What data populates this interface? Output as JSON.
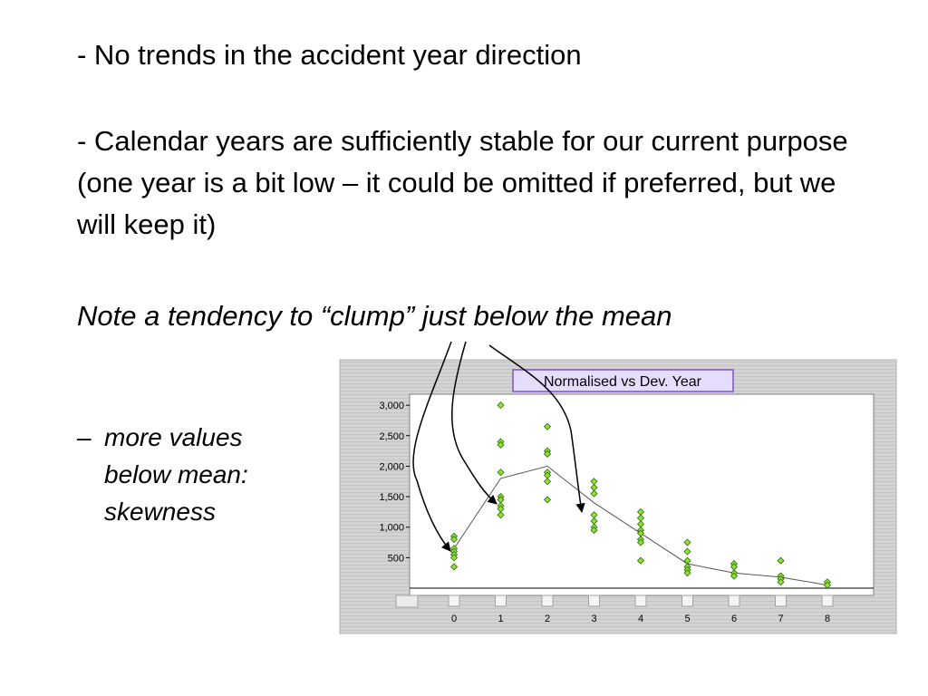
{
  "slide": {
    "point1": "- No trends in the accident year direction",
    "point2": "- Calendar years are sufficiently stable for our current purpose (one year is a bit low – it could be omitted if preferred, but we will keep it)",
    "note": "Note a tendency to “clump” just below the mean",
    "bullet_dash": "–",
    "bullet_lines": [
      "more values",
      "below mean:",
      "skewness"
    ]
  },
  "chart_data": {
    "type": "scatter",
    "title": "Normalised vs Dev. Year",
    "xlabel": "",
    "ylabel": "",
    "x_ticks": [
      "0",
      "1",
      "2",
      "3",
      "4",
      "5",
      "6",
      "7",
      "8"
    ],
    "y_ticks": [
      "500",
      "1,000",
      "1,500",
      "2,000",
      "2,500",
      "3,000"
    ],
    "ylim": [
      0,
      3000
    ],
    "grid": false,
    "legend": "none",
    "colors": {
      "panel_background": "#d3d3d3",
      "panel_stripe": "#c4c4c4",
      "plot_background": "#ffffff",
      "marker_fill": "#8fe13a",
      "marker_stroke": "#2f6b08",
      "mean_line": "#555555",
      "title_box_fill": "#e6dcfb",
      "title_box_stroke": "#7a55c8",
      "arrow": "#000000"
    },
    "series": [
      {
        "points": [
          {
            "x": 0,
            "y": 850
          },
          {
            "x": 0,
            "y": 800
          },
          {
            "x": 0,
            "y": 650
          },
          {
            "x": 0,
            "y": 600
          },
          {
            "x": 0,
            "y": 550
          },
          {
            "x": 0,
            "y": 500
          },
          {
            "x": 0,
            "y": 350
          },
          {
            "x": 1,
            "y": 3000
          },
          {
            "x": 1,
            "y": 2400
          },
          {
            "x": 1,
            "y": 2350
          },
          {
            "x": 1,
            "y": 1900
          },
          {
            "x": 1,
            "y": 1500
          },
          {
            "x": 1,
            "y": 1450
          },
          {
            "x": 1,
            "y": 1350
          },
          {
            "x": 1,
            "y": 1300
          },
          {
            "x": 1,
            "y": 1200
          },
          {
            "x": 2,
            "y": 2650
          },
          {
            "x": 2,
            "y": 2250
          },
          {
            "x": 2,
            "y": 2200
          },
          {
            "x": 2,
            "y": 1900
          },
          {
            "x": 2,
            "y": 1850
          },
          {
            "x": 2,
            "y": 1750
          },
          {
            "x": 2,
            "y": 1450
          },
          {
            "x": 3,
            "y": 1750
          },
          {
            "x": 3,
            "y": 1650
          },
          {
            "x": 3,
            "y": 1550
          },
          {
            "x": 3,
            "y": 1200
          },
          {
            "x": 3,
            "y": 1100
          },
          {
            "x": 3,
            "y": 1000
          },
          {
            "x": 3,
            "y": 950
          },
          {
            "x": 4,
            "y": 1250
          },
          {
            "x": 4,
            "y": 1150
          },
          {
            "x": 4,
            "y": 1050
          },
          {
            "x": 4,
            "y": 950
          },
          {
            "x": 4,
            "y": 900
          },
          {
            "x": 4,
            "y": 800
          },
          {
            "x": 4,
            "y": 750
          },
          {
            "x": 4,
            "y": 450
          },
          {
            "x": 5,
            "y": 750
          },
          {
            "x": 5,
            "y": 600
          },
          {
            "x": 5,
            "y": 450
          },
          {
            "x": 5,
            "y": 350
          },
          {
            "x": 5,
            "y": 300
          },
          {
            "x": 5,
            "y": 250
          },
          {
            "x": 6,
            "y": 400
          },
          {
            "x": 6,
            "y": 350
          },
          {
            "x": 6,
            "y": 250
          },
          {
            "x": 6,
            "y": 200
          },
          {
            "x": 7,
            "y": 450
          },
          {
            "x": 7,
            "y": 200
          },
          {
            "x": 7,
            "y": 150
          },
          {
            "x": 7,
            "y": 100
          },
          {
            "x": 8,
            "y": 100
          },
          {
            "x": 8,
            "y": 50
          }
        ]
      },
      {
        "line": [
          {
            "x": 0,
            "y": 650
          },
          {
            "x": 1,
            "y": 1800
          },
          {
            "x": 2,
            "y": 2000
          },
          {
            "x": 3,
            "y": 1400
          },
          {
            "x": 4,
            "y": 900
          },
          {
            "x": 5,
            "y": 400
          },
          {
            "x": 6,
            "y": 250
          },
          {
            "x": 7,
            "y": 180
          },
          {
            "x": 8,
            "y": 50
          }
        ]
      }
    ],
    "annotations": [
      {
        "type": "arrow",
        "from_text": "note",
        "to_x": 0,
        "to_y": 600
      },
      {
        "type": "arrow",
        "from_text": "note",
        "to_x": 1,
        "to_y": 1450
      },
      {
        "type": "arrow",
        "from_text": "note",
        "to_x": 3,
        "to_y": 1200
      }
    ]
  }
}
